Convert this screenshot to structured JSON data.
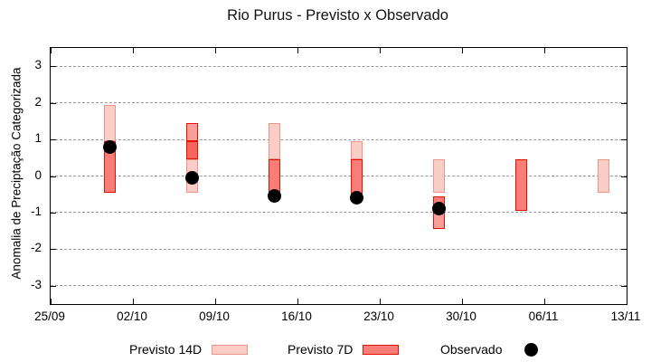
{
  "title": "Rio Purus - Previsto x Observado",
  "ylabel": "Anomalia de Preciptação Categorizada",
  "legend": {
    "previsto14_label": "Previsto 14D",
    "previsto7_label": "Previsto 7D",
    "observado_label": "Observado"
  },
  "colors": {
    "light_fill": "#fbcdc7",
    "light_border": "#f0938b",
    "medium_fill": "#fa7e77",
    "medlight_fill": "#fb9e97",
    "dark_fill": "#f7655c",
    "red_border": "#e61102",
    "grid": "#9a9a9a",
    "observed": "#000000"
  },
  "chart_data": {
    "type": "bar",
    "title": "Rio Purus - Previsto x Observado",
    "xlabel": "",
    "ylabel": "Anomalia de Preciptação Categorizada",
    "ylim": [
      -3.5,
      3.5
    ],
    "yticks": [
      3,
      2,
      1,
      0,
      -1,
      -2,
      -3
    ],
    "x_range_days": 49,
    "grid": true,
    "legend_position": "bottom",
    "xticks": [
      {
        "day": 0,
        "label": "25/09"
      },
      {
        "day": 7,
        "label": "02/10"
      },
      {
        "day": 14,
        "label": "09/10"
      },
      {
        "day": 21,
        "label": "16/10"
      },
      {
        "day": 28,
        "label": "23/10"
      },
      {
        "day": 35,
        "label": "30/10"
      },
      {
        "day": 42,
        "label": "06/11"
      },
      {
        "day": 49,
        "label": "13/11"
      }
    ],
    "bars": [
      {
        "date": "30/09",
        "day": 5,
        "observed": 0.8,
        "segments": [
          {
            "lo": 0.95,
            "hi": 1.95,
            "style": "light"
          },
          {
            "lo": -0.45,
            "hi": 0.95,
            "style": "medium"
          }
        ]
      },
      {
        "date": "07/10",
        "day": 12,
        "observed": -0.05,
        "segments": [
          {
            "lo": 0.95,
            "hi": 1.45,
            "style": "medlight"
          },
          {
            "lo": 0.45,
            "hi": 0.95,
            "style": "dark"
          },
          {
            "lo": -0.45,
            "hi": 0.45,
            "style": "light"
          }
        ]
      },
      {
        "date": "14/10",
        "day": 19,
        "observed": -0.55,
        "segments": [
          {
            "lo": 0.45,
            "hi": 1.45,
            "style": "light"
          },
          {
            "lo": -0.45,
            "hi": 0.45,
            "style": "medium"
          }
        ]
      },
      {
        "date": "21/10",
        "day": 26,
        "observed": -0.6,
        "segments": [
          {
            "lo": 0.45,
            "hi": 0.95,
            "style": "light"
          },
          {
            "lo": -0.5,
            "hi": 0.45,
            "style": "medium"
          }
        ]
      },
      {
        "date": "28/10",
        "day": 33,
        "observed": -0.9,
        "segments": [
          {
            "lo": -0.45,
            "hi": 0.45,
            "style": "light"
          },
          {
            "lo": -0.95,
            "hi": -0.55,
            "style": "medium"
          },
          {
            "lo": -1.45,
            "hi": -0.95,
            "style": "medlight"
          }
        ]
      },
      {
        "date": "04/11",
        "day": 40,
        "observed": null,
        "segments": [
          {
            "lo": -0.95,
            "hi": 0.45,
            "style": "medium"
          }
        ]
      },
      {
        "date": "11/11",
        "day": 47,
        "observed": null,
        "segments": [
          {
            "lo": -0.45,
            "hi": 0.45,
            "style": "light"
          }
        ]
      }
    ]
  }
}
